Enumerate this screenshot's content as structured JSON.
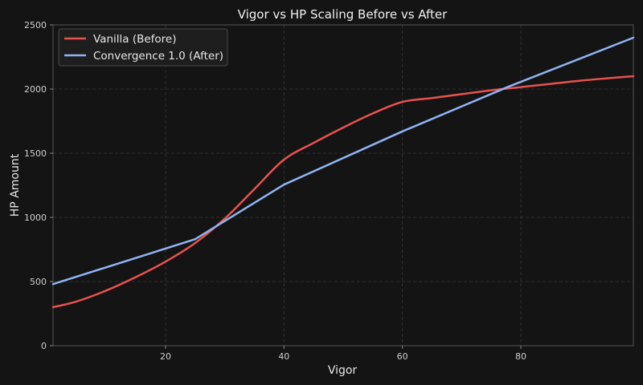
{
  "chart_data": {
    "type": "line",
    "title": "Vigor vs HP Scaling Before vs After",
    "xlabel": "Vigor",
    "ylabel": "HP Amount",
    "xlim": [
      1,
      99
    ],
    "ylim": [
      0,
      2500
    ],
    "xticks": [
      20,
      40,
      60,
      80
    ],
    "yticks": [
      0,
      500,
      1000,
      1500,
      2000,
      2500
    ],
    "grid": true,
    "legend_position": "upper-left",
    "series": [
      {
        "name": "Vanilla (Before)",
        "color": "#e8524f",
        "x": [
          1,
          5,
          10,
          15,
          20,
          25,
          30,
          35,
          40,
          45,
          50,
          55,
          60,
          65,
          70,
          75,
          80,
          85,
          90,
          95,
          99
        ],
        "y": [
          300,
          345,
          430,
          535,
          655,
          800,
          990,
          1220,
          1450,
          1580,
          1700,
          1810,
          1900,
          1930,
          1960,
          1990,
          2015,
          2040,
          2065,
          2085,
          2100
        ]
      },
      {
        "name": "Convergence 1.0 (After)",
        "color": "#8fb4f5",
        "x": [
          1,
          25,
          40,
          60,
          78,
          99
        ],
        "y": [
          480,
          830,
          1255,
          1670,
          2020,
          2400
        ]
      }
    ]
  }
}
